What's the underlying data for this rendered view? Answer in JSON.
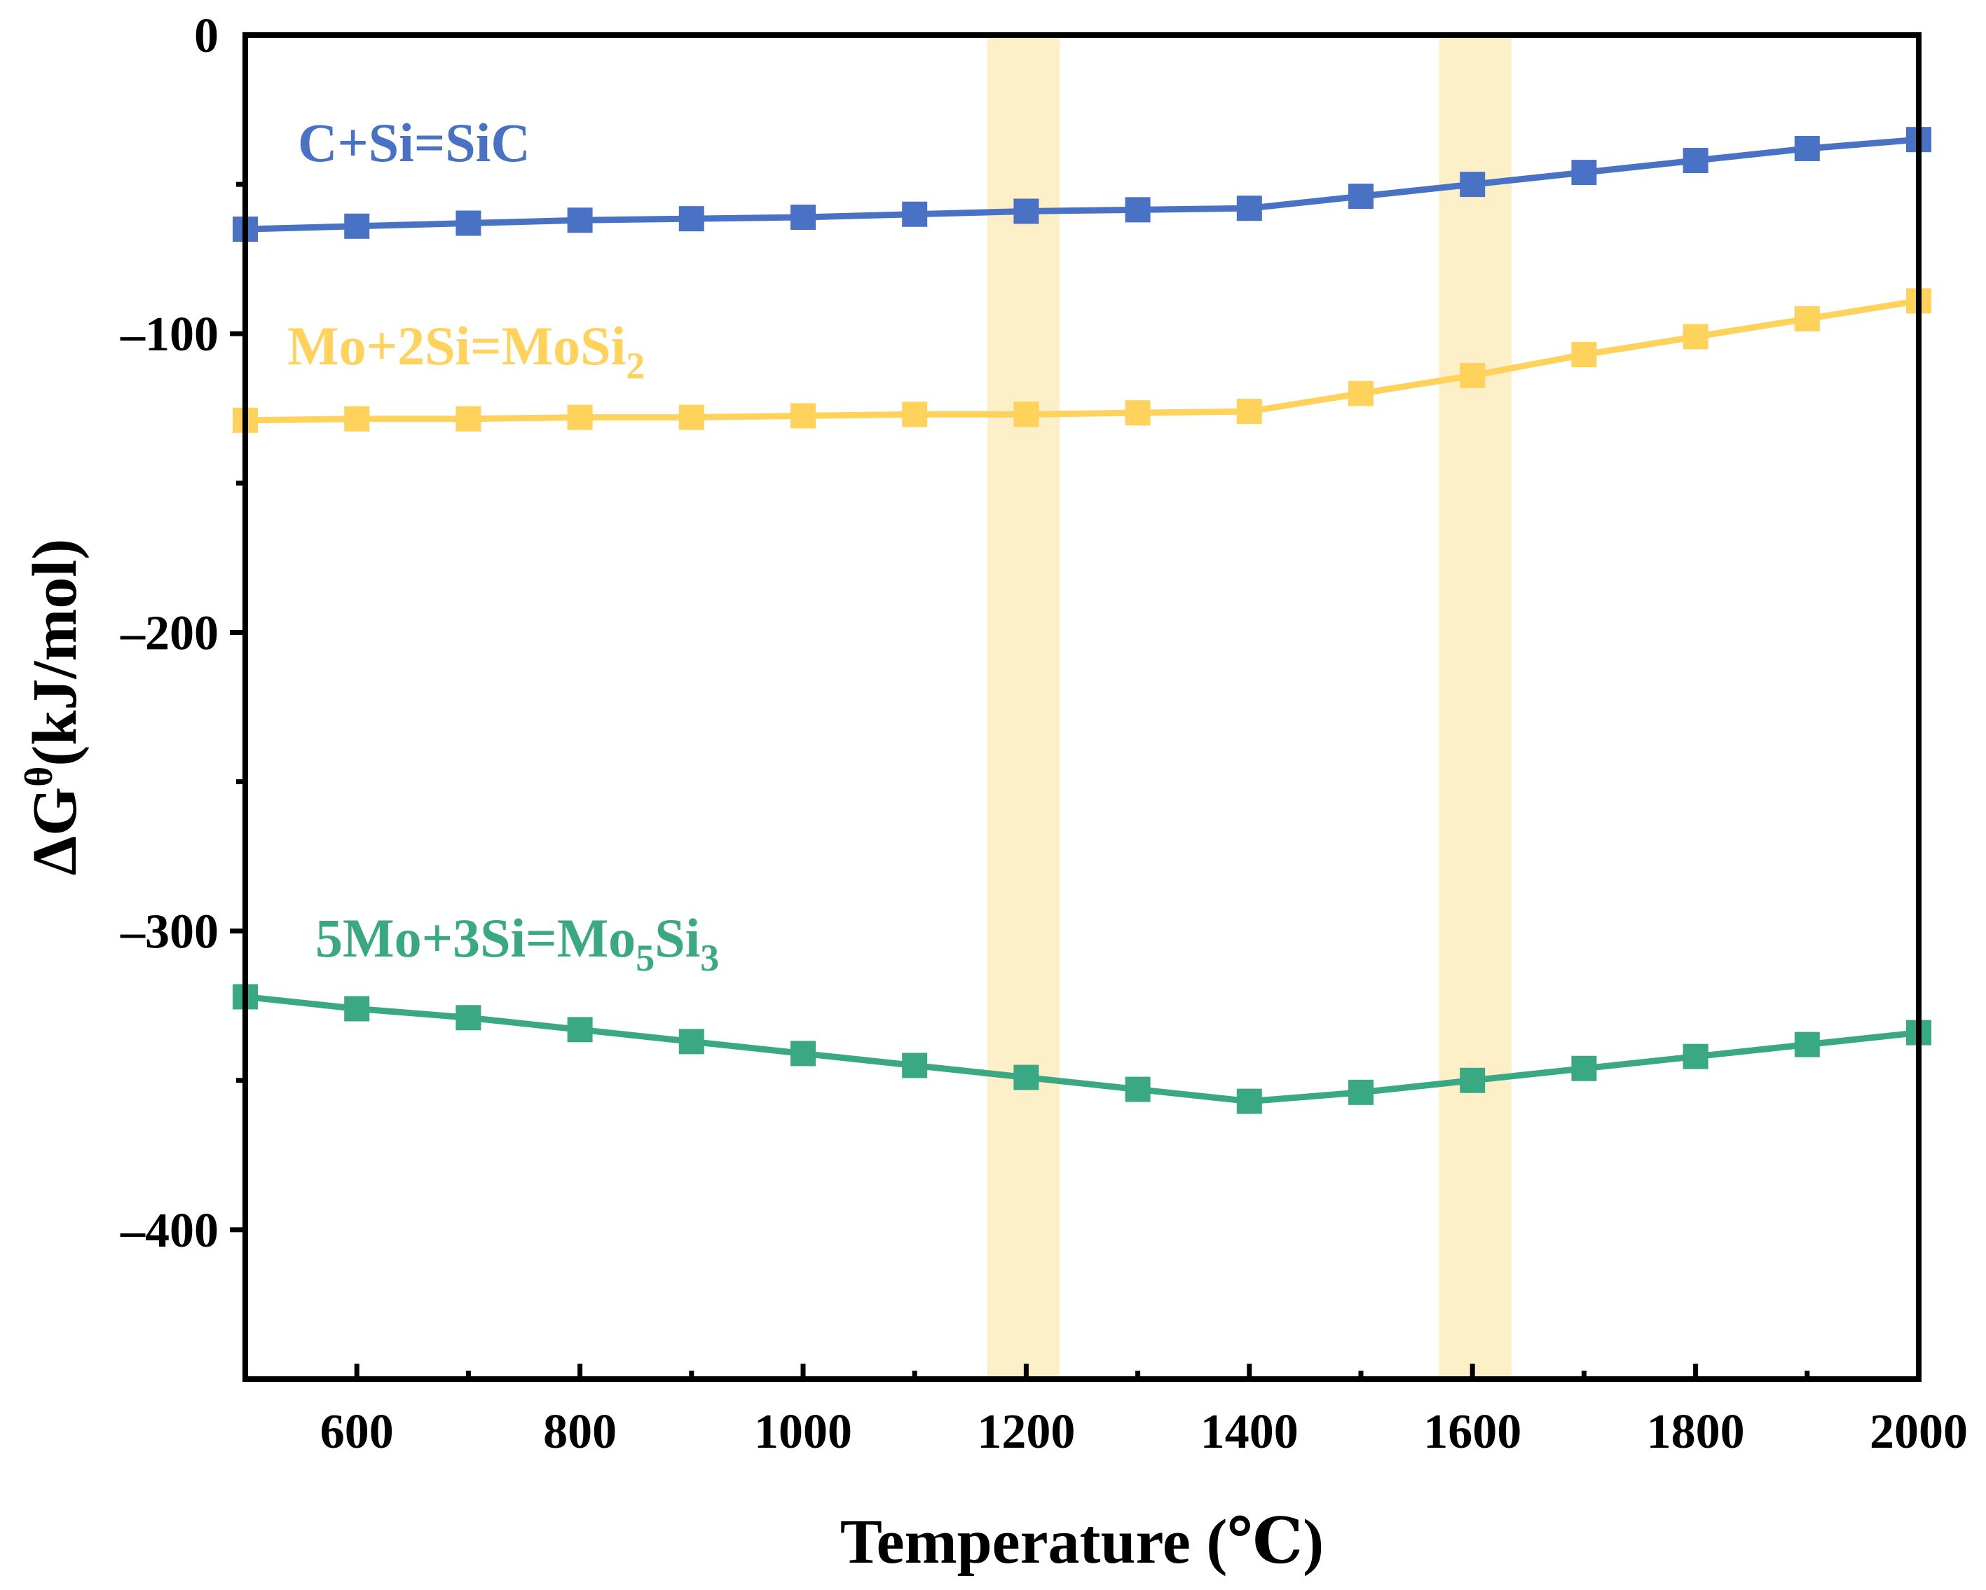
{
  "chart_data": {
    "type": "line",
    "title": "",
    "xlabel": "Temperature (℃)",
    "ylabel_main": "ΔG",
    "ylabel_sup": "θ",
    "ylabel_unit": "(kJ/mol)",
    "xlim": [
      500,
      2000
    ],
    "ylim": [
      -450,
      0
    ],
    "xticks": [
      600,
      800,
      1000,
      1200,
      1400,
      1600,
      1800,
      2000
    ],
    "yticks": [
      0,
      -100,
      -200,
      -300,
      -400
    ],
    "ytick_labels": [
      "0",
      "–100",
      "–200",
      "–300",
      "–400"
    ],
    "grid": false,
    "highlight_bands": [
      {
        "from": 1165,
        "to": 1230,
        "color": "#fdf0c8"
      },
      {
        "from": 1570,
        "to": 1635,
        "color": "#fdf0c8"
      }
    ],
    "x": [
      500,
      600,
      700,
      800,
      900,
      1000,
      1100,
      1200,
      1300,
      1400,
      1500,
      1600,
      1700,
      1800,
      1900,
      2000
    ],
    "series": [
      {
        "name": "C+Si=SiC",
        "label_parts": [
          {
            "t": "C+Si=SiC",
            "sub": false
          }
        ],
        "color": "#4a72c4",
        "values": [
          -65,
          -64,
          -63,
          -62,
          -61.5,
          -61,
          -60,
          -59,
          -58.5,
          -58,
          -54,
          -50,
          -46,
          -42,
          -38,
          -35
        ]
      },
      {
        "name": "Mo+2Si=MoSi2",
        "label_parts": [
          {
            "t": "Mo+2Si=MoSi",
            "sub": false
          },
          {
            "t": "2",
            "sub": true
          }
        ],
        "color": "#ffd25c",
        "values": [
          -129,
          -128.5,
          -128.5,
          -128,
          -128,
          -127.5,
          -127,
          -127,
          -126.5,
          -126,
          -120,
          -114,
          -107,
          -101,
          -95,
          -89
        ]
      },
      {
        "name": "5Mo+3Si=Mo5Si3",
        "label_parts": [
          {
            "t": "5Mo+3Si=Mo",
            "sub": false
          },
          {
            "t": "5",
            "sub": true
          },
          {
            "t": "Si",
            "sub": false
          },
          {
            "t": "3",
            "sub": true
          }
        ],
        "color": "#3aa882",
        "values": [
          -322,
          -326,
          -329,
          -333,
          -337,
          -341,
          -345,
          -349,
          -353,
          -357,
          -354,
          -350,
          -346,
          -342,
          -338,
          -334
        ]
      }
    ]
  }
}
